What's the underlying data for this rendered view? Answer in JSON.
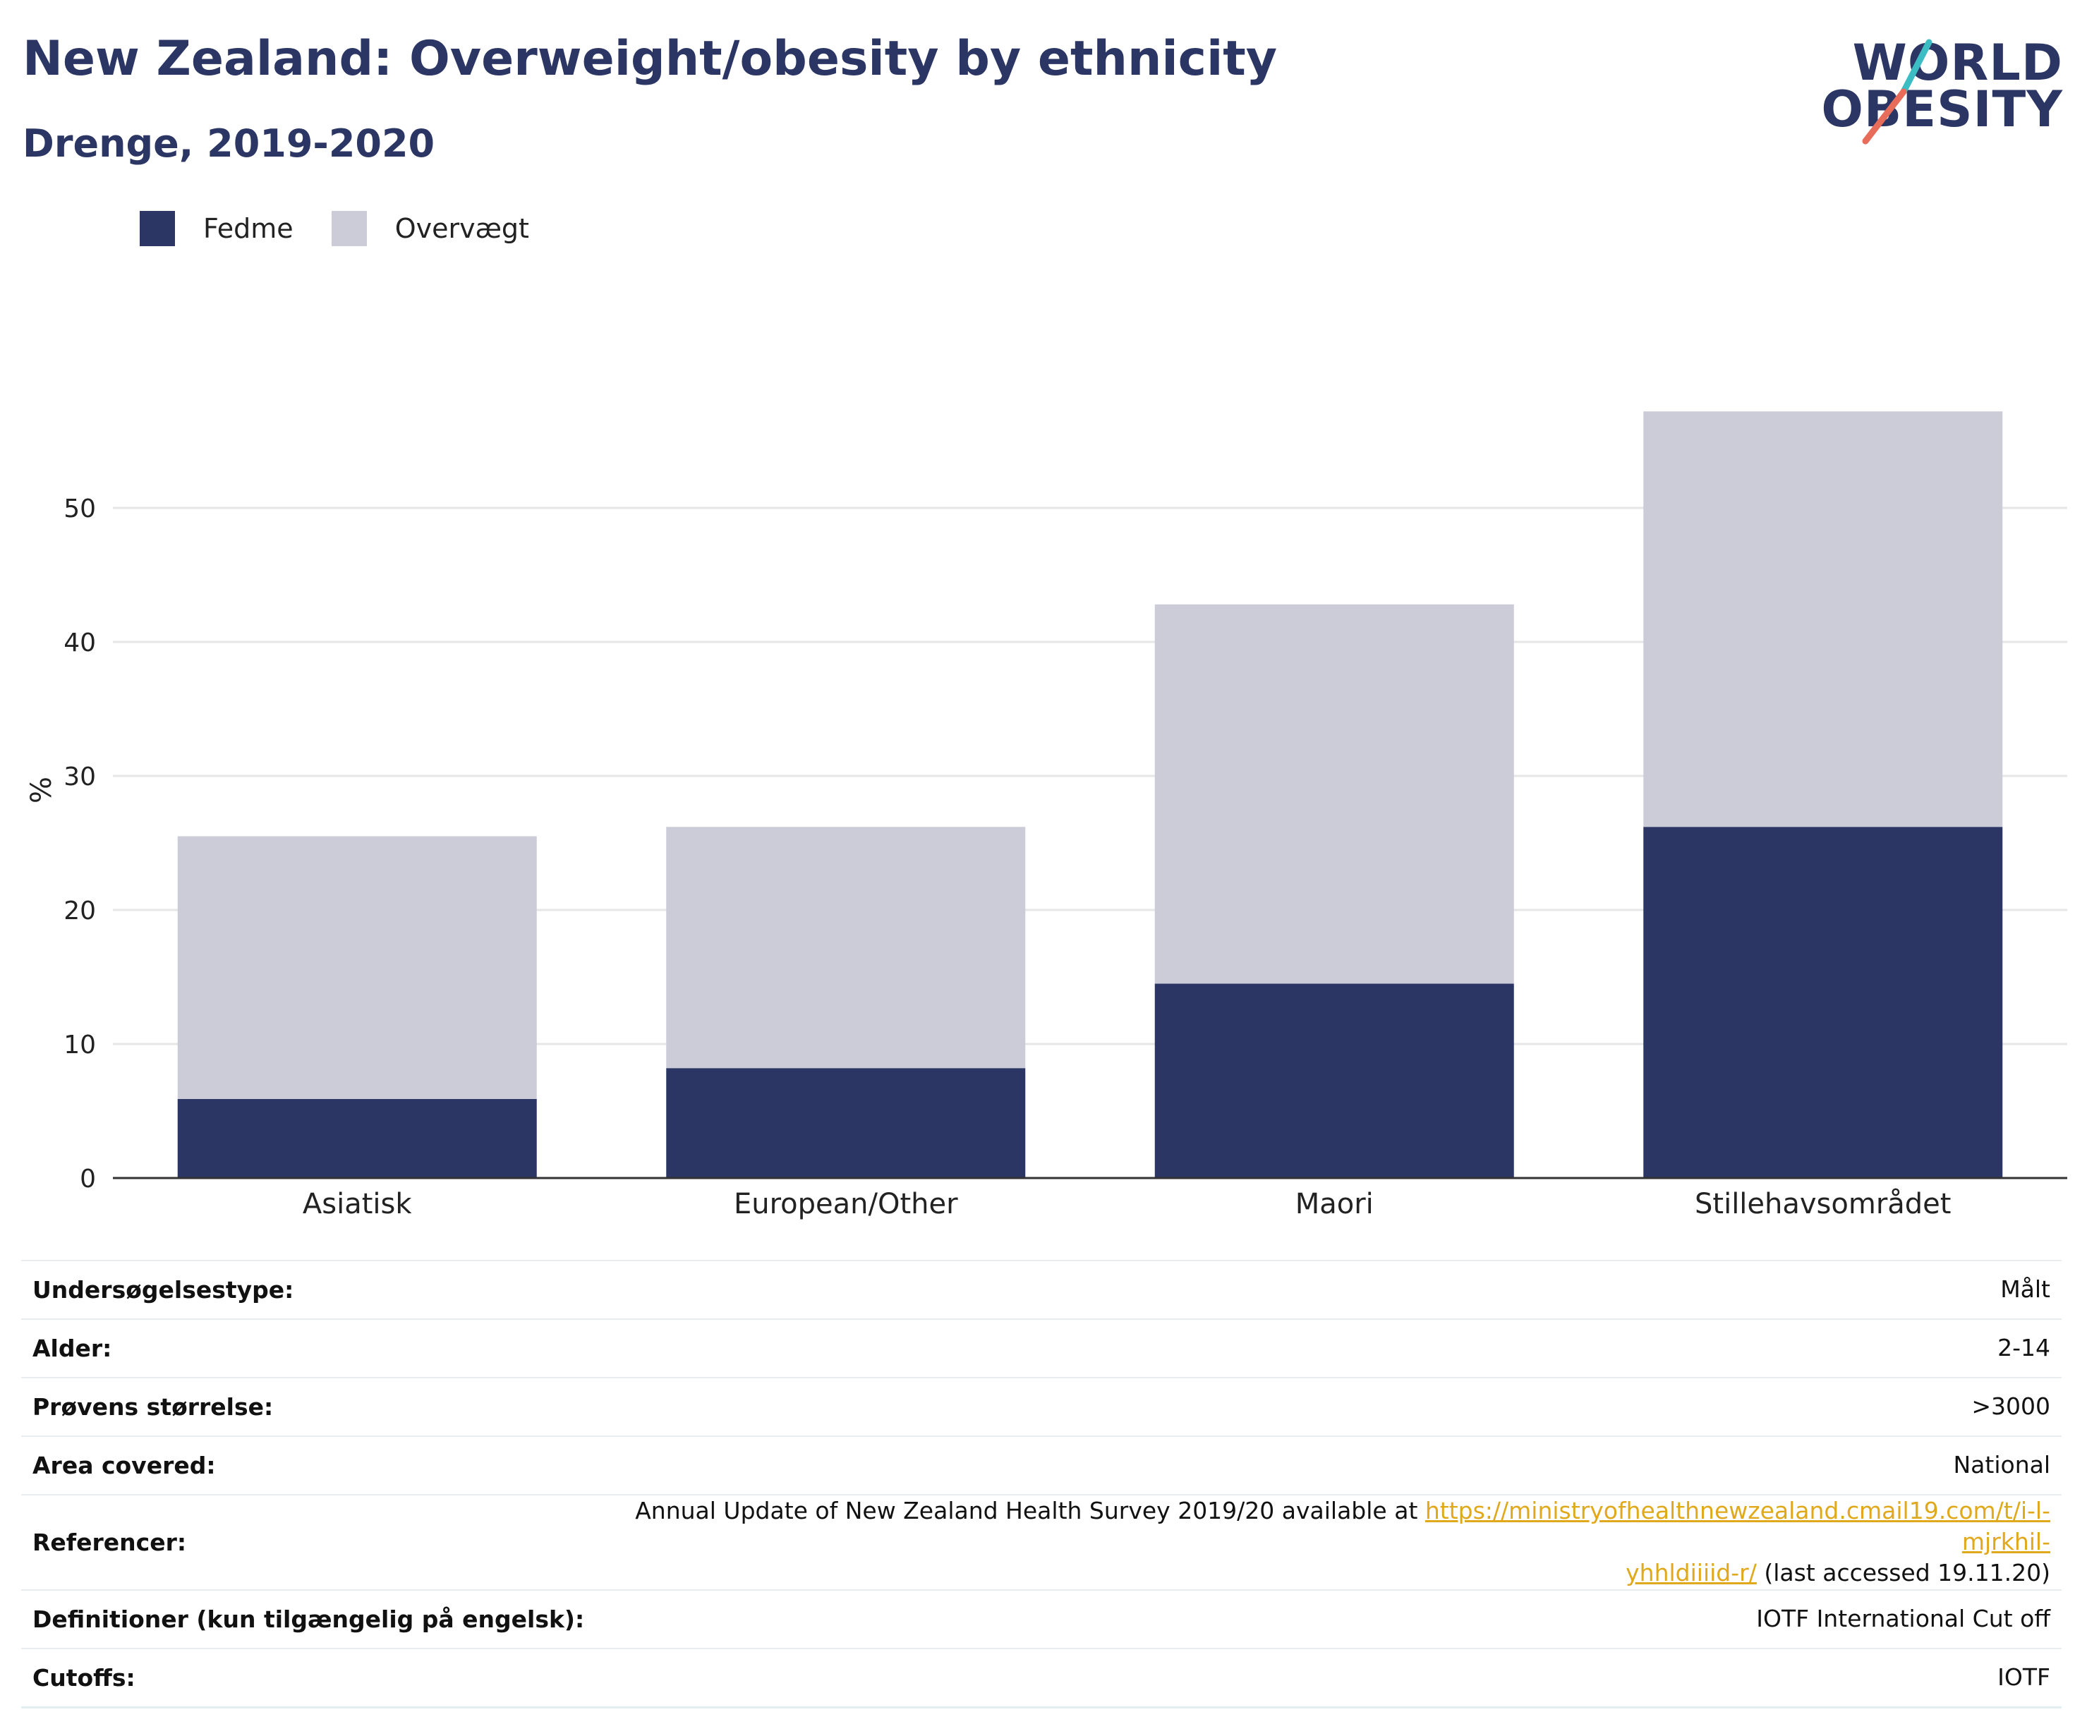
{
  "header": {
    "title": "New Zealand: Overweight/obesity by ethnicity",
    "subtitle": "Drenge, 2019-2020"
  },
  "logo": {
    "line1": "WORLD",
    "line2": "OBESITY",
    "slash_colors": [
      "#3cbcc3",
      "#e76c5a"
    ]
  },
  "colors": {
    "fedme": "#2b3664",
    "overvaegt": "#cbccd8",
    "title": "#2b3664",
    "link": "#e0a91c"
  },
  "legend": [
    {
      "label": "Fedme",
      "color": "#2b3664"
    },
    {
      "label": "Overvægt",
      "color": "#cbccd8"
    }
  ],
  "chart_data": {
    "type": "bar",
    "stacked": true,
    "title": "New Zealand: Overweight/obesity by ethnicity",
    "subtitle": "Drenge, 2019-2020",
    "xlabel": "",
    "ylabel": "%",
    "categories": [
      "Asiatisk",
      "European/Other",
      "Maori",
      "Stillehavsområdet"
    ],
    "series": [
      {
        "name": "Fedme",
        "values": [
          5.9,
          8.2,
          14.5,
          26.2
        ]
      },
      {
        "name": "Overvægt",
        "values": [
          19.6,
          18.0,
          28.3,
          31.0
        ]
      }
    ],
    "ylim": [
      0,
      60
    ],
    "yticks": [
      0,
      10,
      20,
      30,
      40,
      50
    ],
    "grid": true,
    "legend_position": "top-left"
  },
  "info": {
    "rows": [
      {
        "key": "Undersøgelsestype:",
        "value": "Målt"
      },
      {
        "key": "Alder:",
        "value": "2-14"
      },
      {
        "key": "Prøvens størrelse:",
        "value": ">3000"
      },
      {
        "key": "Area covered:",
        "value": "National"
      }
    ],
    "reference": {
      "key": "Referencer:",
      "text_before": "Annual Update of New Zealand Health Survey 2019/20 available at ",
      "link_part1": "https://ministryofhealthnewzealand.cmail19.com/t/i-l-mjrkhil-",
      "link_part2": "yhhldiiiid-r/",
      "text_after": " (last accessed 19.11.20)"
    },
    "rows_after": [
      {
        "key": "Definitioner (kun tilgængelig på engelsk):",
        "value": "IOTF International Cut off"
      },
      {
        "key": "Cutoffs:",
        "value": "IOTF"
      }
    ]
  }
}
